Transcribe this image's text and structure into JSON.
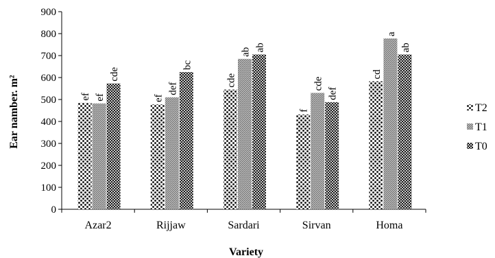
{
  "chart_data": {
    "type": "bar",
    "title": "",
    "xlabel": "Variety",
    "ylabel": "Ear namber. m²",
    "categories": [
      "Azar2",
      "Rijjaw",
      "Sardari",
      "Sirvan",
      "Homa"
    ],
    "ylim": [
      0,
      900
    ],
    "yticks": [
      0,
      100,
      200,
      300,
      400,
      500,
      600,
      700,
      800,
      900
    ],
    "grid": false,
    "legend_position": "right",
    "series": [
      {
        "name": "T2",
        "pattern": "coarse-dots",
        "values": [
          485,
          478,
          545,
          432,
          583
        ],
        "labels": [
          "ef",
          "ef",
          "cde",
          "f",
          "cd"
        ]
      },
      {
        "name": "T1",
        "pattern": "fine-grey-dots",
        "values": [
          482,
          510,
          685,
          530,
          778
        ],
        "labels": [
          "ef",
          "def",
          "ab",
          "cde",
          "a"
        ]
      },
      {
        "name": "T0",
        "pattern": "dark-checker",
        "values": [
          573,
          625,
          705,
          488,
          705
        ],
        "labels": [
          "cde",
          "bc",
          "ab",
          "def",
          "ab"
        ]
      }
    ],
    "legend_order": [
      "T2",
      "T1",
      "T0"
    ]
  }
}
